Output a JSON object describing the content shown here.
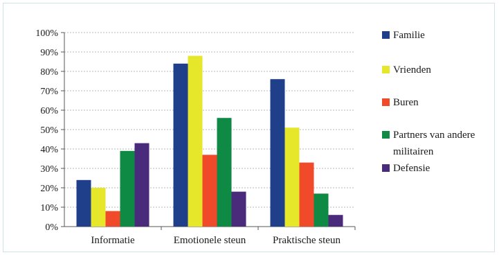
{
  "chart_data": {
    "type": "bar",
    "title": "",
    "xlabel": "",
    "ylabel": "",
    "ylim": [
      0,
      100
    ],
    "yticks": [
      "0%",
      "10%",
      "20%",
      "30%",
      "40%",
      "50%",
      "60%",
      "70%",
      "80%",
      "90%",
      "100%"
    ],
    "categories": [
      "Informatie",
      "Emotionele steun",
      "Praktische steun"
    ],
    "series": [
      {
        "name": "Familie",
        "color": "#1f3f8a",
        "values": [
          24,
          84,
          76
        ]
      },
      {
        "name": "Vrienden",
        "color": "#e6e62a",
        "values": [
          20,
          88,
          51
        ]
      },
      {
        "name": "Buren",
        "color": "#f04a2a",
        "values": [
          8,
          37,
          33
        ]
      },
      {
        "name": "Partners van andere militairen",
        "color": "#0e8a44",
        "values": [
          39,
          56,
          17
        ]
      },
      {
        "name": "Defensie",
        "color": "#4a2a7a",
        "values": [
          43,
          18,
          6
        ]
      }
    ],
    "legend": {
      "position": "right",
      "labels": [
        "Familie",
        "Vrienden",
        "Buren",
        "Partners van andere\nmilitairen",
        "Defensie"
      ]
    },
    "grid": true
  }
}
